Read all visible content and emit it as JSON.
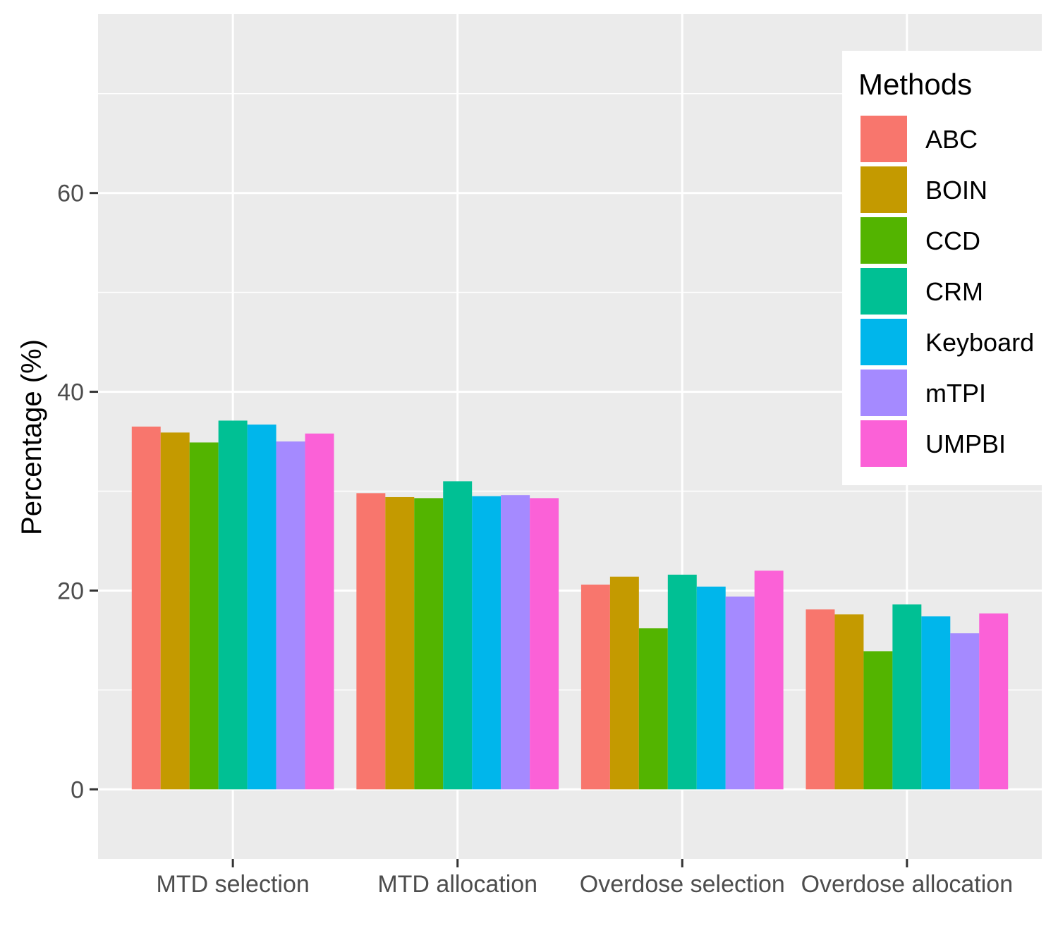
{
  "chart_data": {
    "type": "bar",
    "title": "",
    "xlabel": "",
    "ylabel": "Percentage (%)",
    "ylim": [
      -7,
      78
    ],
    "yticks": [
      0,
      20,
      40,
      60
    ],
    "grid": true,
    "legend_title": "Methods",
    "legend_position": "top-right",
    "categories": [
      "MTD selection",
      "MTD allocation",
      "Overdose selection",
      "Overdose allocation"
    ],
    "series": [
      {
        "name": "ABC",
        "color": "#F8766D",
        "values": [
          36.5,
          29.8,
          20.6,
          18.1
        ]
      },
      {
        "name": "BOIN",
        "color": "#C49A00",
        "values": [
          35.9,
          29.4,
          21.4,
          17.6
        ]
      },
      {
        "name": "CCD",
        "color": "#53B400",
        "values": [
          34.9,
          29.3,
          16.2,
          13.9
        ]
      },
      {
        "name": "CRM",
        "color": "#00C094",
        "values": [
          37.1,
          31.0,
          21.6,
          18.6
        ]
      },
      {
        "name": "Keyboard",
        "color": "#00B6EB",
        "values": [
          36.7,
          29.5,
          20.4,
          17.4
        ]
      },
      {
        "name": "mTPI",
        "color": "#A58AFF",
        "values": [
          35.0,
          29.6,
          19.4,
          15.7
        ]
      },
      {
        "name": "UMPBI",
        "color": "#FB61D7",
        "values": [
          35.8,
          29.3,
          22.0,
          17.7
        ]
      }
    ]
  }
}
